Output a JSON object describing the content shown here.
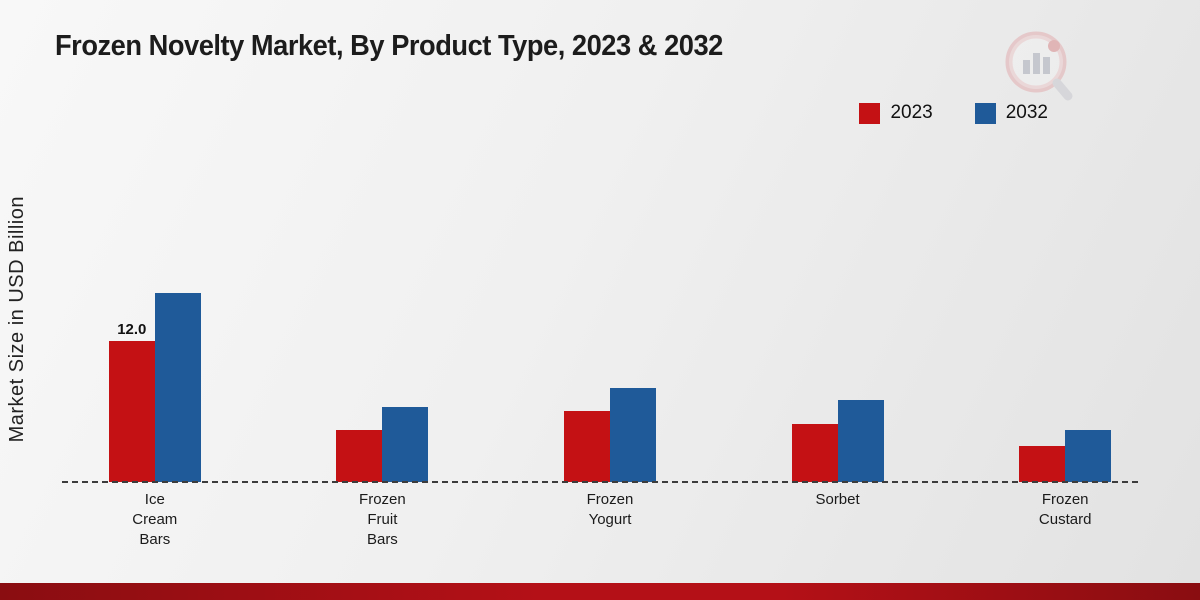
{
  "page": {
    "title": "Frozen Novelty Market, By Product Type, 2023 & 2032",
    "ylabel": "Market Size in USD Billion"
  },
  "branding": {
    "logo_name": "market-research-bar-chart-logo",
    "footer_color": "#b41017"
  },
  "chart_data": {
    "type": "bar",
    "title": "Frozen Novelty Market, By Product Type, 2023 & 2032",
    "ylabel": "Market Size in USD Billion",
    "xlabel": "",
    "categories": [
      "Ice Cream Bars",
      "Frozen Fruit Bars",
      "Frozen Yogurt",
      "Sorbet",
      "Frozen Custard"
    ],
    "tick_labels": [
      "Ice\nCream\nBars",
      "Frozen\nFruit\nBars",
      "Frozen\nYogurt",
      "Sorbet",
      "Frozen\nCustard"
    ],
    "series": [
      {
        "name": "2023",
        "color": "#c41114",
        "values": [
          12.0,
          4.4,
          6.0,
          4.9,
          3.1
        ]
      },
      {
        "name": "2032",
        "color": "#1f5a99",
        "values": [
          16.1,
          6.4,
          8.0,
          7.0,
          4.4
        ]
      }
    ],
    "annotations": [
      {
        "category": "Ice Cream Bars",
        "series": "2023",
        "text": "12.0"
      }
    ],
    "ylim": [
      0,
      18
    ],
    "grid": false,
    "legend_position": "top-right",
    "baseline_style": "dashed"
  }
}
